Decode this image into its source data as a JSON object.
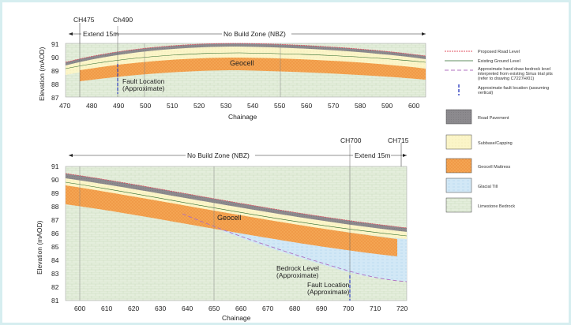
{
  "top_section": {
    "chainage_start": "CH475",
    "chainage_end": "Ch490",
    "extend_label": "Extend 15m",
    "nbz_label": "No Build Zone (NBZ)",
    "geocell_label": "Geocell",
    "fault_label_1": "Fault Location",
    "fault_label_2": "(Approximate)",
    "y_label": "Elevation (mAOD)",
    "x_label": "Chainage",
    "y_ticks": [
      "91",
      "90",
      "89",
      "88",
      "87"
    ],
    "x_ticks": [
      "470",
      "480",
      "490",
      "500",
      "510",
      "520",
      "530",
      "540",
      "550",
      "560",
      "570",
      "580",
      "590",
      "600"
    ]
  },
  "bottom_section": {
    "nbz_label": "No Build Zone (NBZ)",
    "chainage_start": "CH700",
    "chainage_end": "CH715",
    "extend_label": "Extend 15m",
    "geocell_label": "Geocell",
    "bedrock_label_1": "Bedrock Level",
    "bedrock_label_2": "(Approximate)",
    "fault_label_1": "Fault Location",
    "fault_label_2": "(Approximate)",
    "y_label": "Elevation (mAOD)",
    "x_label": "Chainage",
    "y_ticks": [
      "91",
      "90",
      "89",
      "88",
      "87",
      "86",
      "85",
      "84",
      "83",
      "82",
      "81"
    ],
    "x_ticks": [
      "600",
      "610",
      "620",
      "630",
      "640",
      "650",
      "660",
      "670",
      "680",
      "690",
      "700",
      "710",
      "720"
    ]
  },
  "legend": {
    "proposed_road": "Proposed Road Level",
    "existing_ground": "Existing Ground Level",
    "bedrock_1": "Approximate hand draw bedrock level",
    "bedrock_2": "interpreted from existing Sirius trial pits",
    "bedrock_3": "(refer to drawing C7227H/01)",
    "fault_1": "Approximate fault location (assuming",
    "fault_2": "vertical)",
    "road_pavement": "Road Pavement",
    "subbase": "Subbase/Capping",
    "geocell_mattress": "Geocell Mattress",
    "glacial_till": "Glacial Till",
    "limestone": "Limestone Bedrock"
  },
  "colors": {
    "pavement": "#8c8a8e",
    "subbase": "#fbf5c8",
    "geocell": "#f4a553",
    "glacial": "#d2e8f6",
    "limestone": "#e4eedc",
    "proposed_line": "#e05060",
    "existing_line": "#2c6a2c",
    "bedrock_line": "#b070c0",
    "fault_line": "#3040c0"
  }
}
